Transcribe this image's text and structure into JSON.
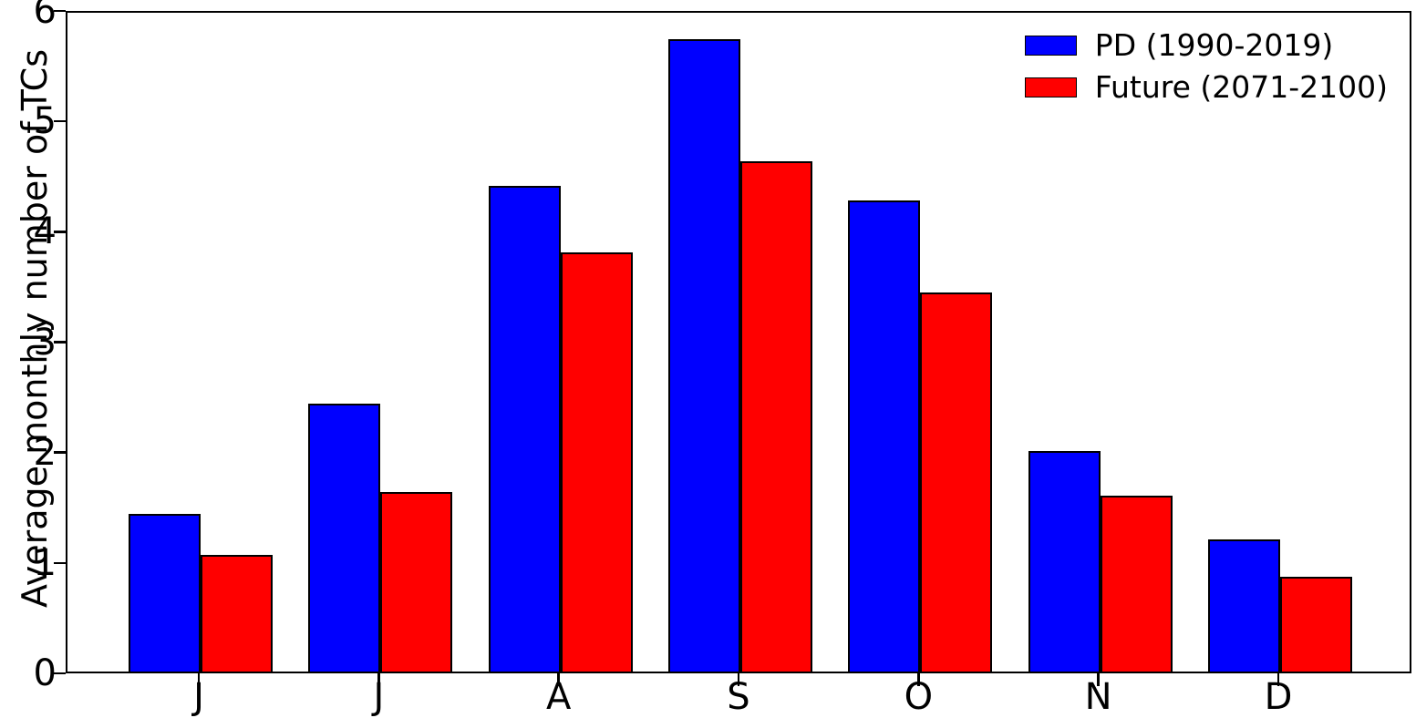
{
  "chart_data": {
    "type": "bar",
    "title": "",
    "xlabel": "",
    "ylabel": "Average monthly number of TCs",
    "categories": [
      "J",
      "J",
      "A",
      "S",
      "O",
      "N",
      "D"
    ],
    "series": [
      {
        "name": "PD (1990-2019)",
        "color": "#0000ff",
        "values": [
          1.43,
          2.43,
          4.4,
          5.73,
          4.27,
          2.0,
          1.2
        ]
      },
      {
        "name": "Future (2071-2100)",
        "color": "#ff0000",
        "values": [
          1.06,
          1.63,
          3.8,
          4.62,
          3.43,
          1.59,
          0.86
        ]
      }
    ],
    "ylim": [
      0,
      6
    ],
    "yticks": [
      0,
      1,
      2,
      3,
      4,
      5,
      6
    ],
    "xlim": [
      0.26,
      7.74
    ],
    "bar_width": 0.4,
    "bar_edge_color": "#000000",
    "grid": false,
    "legend_position": "upper-right"
  }
}
